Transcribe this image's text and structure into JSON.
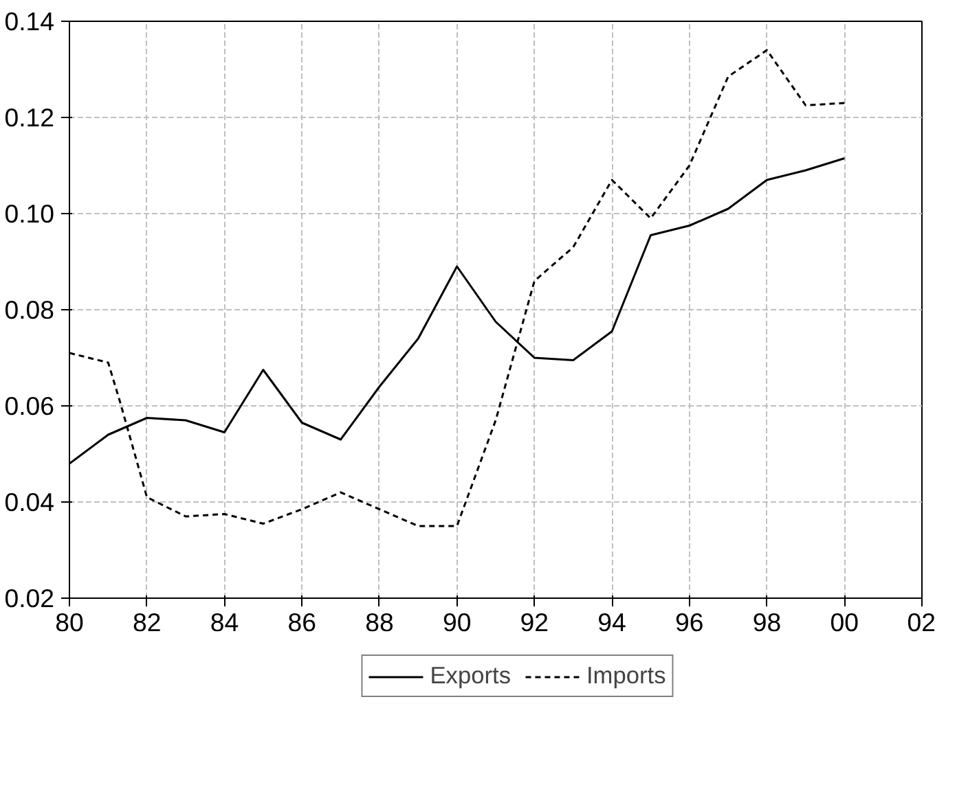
{
  "chart_data": {
    "type": "line",
    "grid": true,
    "legend": "bottom",
    "xlim": [
      1980,
      2002
    ],
    "xticks": [
      {
        "value": 1980,
        "label": "80"
      },
      {
        "value": 1982,
        "label": "82"
      },
      {
        "value": 1984,
        "label": "84"
      },
      {
        "value": 1986,
        "label": "86"
      },
      {
        "value": 1988,
        "label": "88"
      },
      {
        "value": 1990,
        "label": "90"
      },
      {
        "value": 1992,
        "label": "92"
      },
      {
        "value": 1994,
        "label": "94"
      },
      {
        "value": 1996,
        "label": "96"
      },
      {
        "value": 1998,
        "label": "98"
      },
      {
        "value": 2000,
        "label": "00"
      },
      {
        "value": 2002,
        "label": "02"
      }
    ],
    "ylim": [
      0.02,
      0.14
    ],
    "yticks": [
      {
        "value": 0.02,
        "label": "0.02"
      },
      {
        "value": 0.04,
        "label": "0.04"
      },
      {
        "value": 0.06,
        "label": "0.06"
      },
      {
        "value": 0.08,
        "label": "0.08"
      },
      {
        "value": 0.1,
        "label": "0.10"
      },
      {
        "value": 0.12,
        "label": "0.12"
      },
      {
        "value": 0.14,
        "label": "0.14"
      }
    ],
    "series": [
      {
        "name": "Exports",
        "color": "#000000",
        "line_style": "solid",
        "x": [
          1980,
          1981,
          1982,
          1983,
          1984,
          1985,
          1986,
          1987,
          1988,
          1989,
          1990,
          1991,
          1992,
          1993,
          1994,
          1995,
          1996,
          1997,
          1998,
          1999,
          2000
        ],
        "values": [
          0.048,
          0.054,
          0.0575,
          0.057,
          0.0545,
          0.0675,
          0.0565,
          0.053,
          0.064,
          0.074,
          0.089,
          0.0775,
          0.07,
          0.0695,
          0.0755,
          0.0955,
          0.0975,
          0.101,
          0.107,
          0.109,
          0.1115
        ]
      },
      {
        "name": "Imports",
        "color": "#000000",
        "line_style": "dashed",
        "x": [
          1980,
          1981,
          1981.3,
          1982,
          1983,
          1984,
          1985,
          1986,
          1987,
          1988,
          1989,
          1990,
          1991,
          1992,
          1993,
          1994,
          1995,
          1996,
          1997,
          1998,
          1999,
          2000
        ],
        "values": [
          0.071,
          0.069,
          0.061,
          0.041,
          0.037,
          0.0375,
          0.0355,
          0.0385,
          0.042,
          0.0385,
          0.035,
          0.035,
          0.057,
          0.086,
          0.093,
          0.107,
          0.099,
          0.11,
          0.1285,
          0.134,
          0.1225,
          0.123
        ]
      }
    ]
  }
}
